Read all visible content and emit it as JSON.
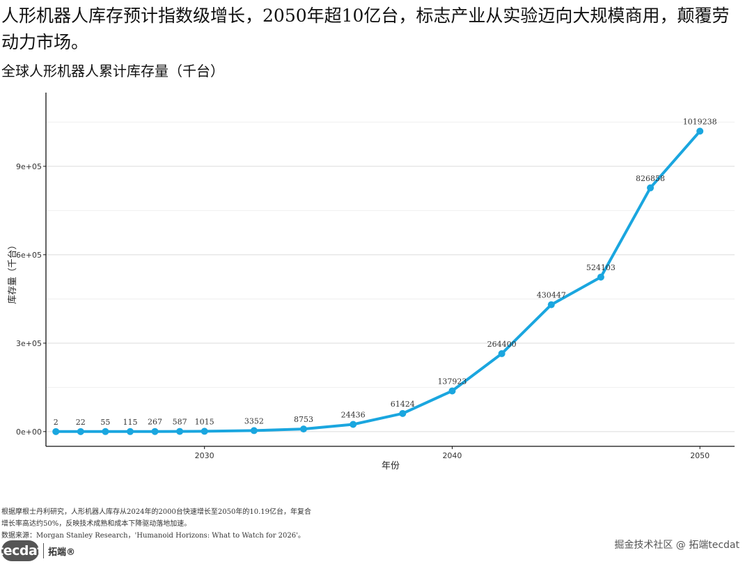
{
  "headline": "人形机器人库存预计指数级增长，2050年超10亿台，标志产业从实验迈向大规模商用，颠覆劳动力市场。",
  "notes": {
    "line1": "根据摩根士丹利研究，人形机器人库存从2024年的2000台快速增长至2050年的10.19亿台，年复合",
    "line2": "增长率高达约50%，反映技术成熟和成本下降驱动落地加速。",
    "source": "数据来源：Morgan Stanley Research，'Humanoid Horizons: What to Watch for 2026'。"
  },
  "logo": {
    "brand": "tecdat",
    "name": "拓端®"
  },
  "watermark": "掘金技术社区 @ 拓端tecdat",
  "chart_data": {
    "type": "line",
    "title": "全球人形机器人累计库存量（千台）",
    "xlabel": "年份",
    "ylabel": "库存量（千台）",
    "x": [
      2024,
      2025,
      2026,
      2027,
      2028,
      2029,
      2030,
      2032,
      2034,
      2036,
      2038,
      2040,
      2042,
      2044,
      2046,
      2048,
      2050
    ],
    "series": [
      {
        "values": [
          2,
          22,
          55,
          115,
          267,
          587,
          1015,
          3352,
          8753,
          24436,
          61424,
          137923,
          264400,
          430447,
          524103,
          826858,
          1019238
        ]
      }
    ],
    "data_labels": [
      "2",
      "22",
      "55",
      "115",
      "267",
      "587",
      "1015",
      "3352",
      "8753",
      "24436",
      "61424",
      "137923",
      "264400",
      "430447",
      "524103",
      "826858",
      "1019238"
    ],
    "xlim": [
      2023.6,
      2051.4
    ],
    "ylim": [
      -50000,
      1150000
    ],
    "x_ticks": [
      2030,
      2040,
      2050
    ],
    "x_tick_labels": [
      "2030",
      "2040",
      "2050"
    ],
    "y_ticks": [
      0,
      300000,
      600000,
      900000
    ],
    "y_tick_labels": [
      "0e+00",
      "3e+05",
      "6e+05",
      "9e+05"
    ],
    "y_minor_ticks": [
      150000,
      450000,
      750000,
      1050000
    ],
    "grid": true,
    "legend": "none",
    "color": "#1aa6df"
  }
}
